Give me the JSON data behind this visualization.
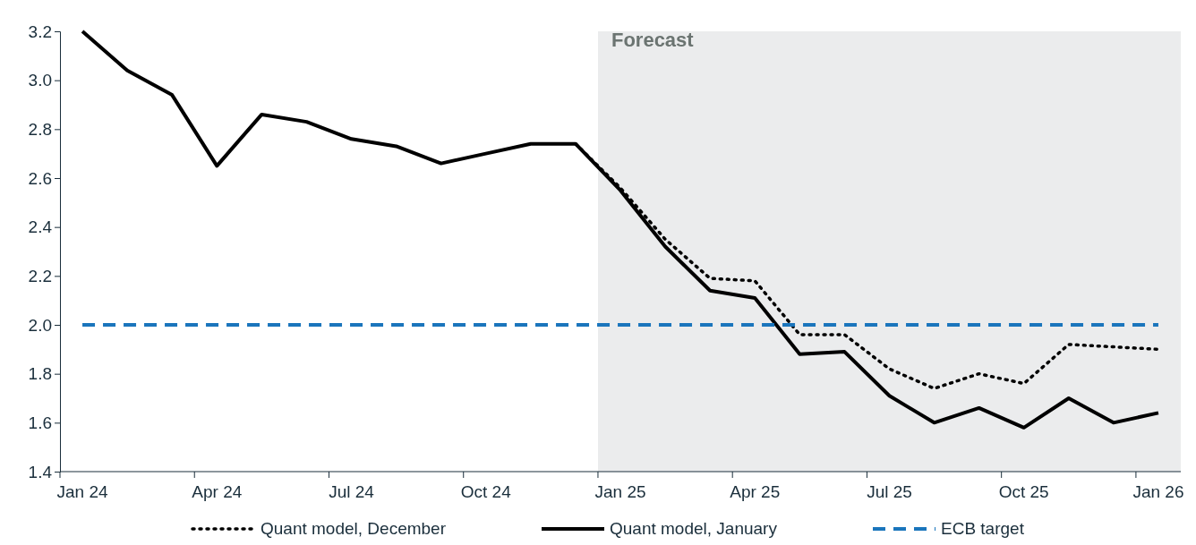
{
  "chart_data": {
    "type": "line",
    "categories": [
      "Jan 24",
      null,
      null,
      "Apr 24",
      null,
      null,
      "Jul 24",
      null,
      null,
      "Oct 24",
      null,
      null,
      "Jan 25",
      null,
      null,
      "Apr 25",
      null,
      null,
      "Jul 25",
      null,
      null,
      "Oct 25",
      null,
      null,
      "Jan 26"
    ],
    "series": [
      {
        "name": "Quant model, December",
        "color": "#000000",
        "line_style": "dotted",
        "values": [
          null,
          null,
          null,
          null,
          null,
          null,
          null,
          null,
          null,
          null,
          null,
          2.74,
          2.56,
          2.35,
          2.19,
          2.18,
          1.96,
          1.96,
          1.82,
          1.74,
          1.8,
          1.76,
          1.92,
          1.91,
          1.9
        ]
      },
      {
        "name": "Quant model, January",
        "color": "#000000",
        "line_style": "solid",
        "values": [
          3.2,
          3.04,
          2.94,
          2.65,
          2.86,
          2.83,
          2.76,
          2.73,
          2.66,
          2.7,
          2.74,
          2.74,
          2.55,
          2.32,
          2.14,
          2.11,
          1.88,
          1.89,
          1.71,
          1.6,
          1.66,
          1.58,
          1.7,
          1.6,
          1.64
        ]
      },
      {
        "name": "ECB target",
        "color": "#1a75bc",
        "line_style": "dashed",
        "values": [
          2.0,
          2.0,
          2.0,
          2.0,
          2.0,
          2.0,
          2.0,
          2.0,
          2.0,
          2.0,
          2.0,
          2.0,
          2.0,
          2.0,
          2.0,
          2.0,
          2.0,
          2.0,
          2.0,
          2.0,
          2.0,
          2.0,
          2.0,
          2.0,
          2.0
        ]
      }
    ],
    "ylim": [
      1.4,
      3.2
    ],
    "yticks": [
      1.4,
      1.6,
      1.8,
      {
        "value": 2,
        "label": "2.0"
      },
      2.2,
      2.4,
      2.6,
      2.8,
      {
        "value": 3,
        "label": "3.0"
      },
      3.2
    ],
    "bands": [
      {
        "axis": "x",
        "from": "Jan 25",
        "to": "Jan 26",
        "label": "Forecast",
        "color": "#ebeced"
      }
    ],
    "grid": false,
    "legend": "bottom"
  }
}
